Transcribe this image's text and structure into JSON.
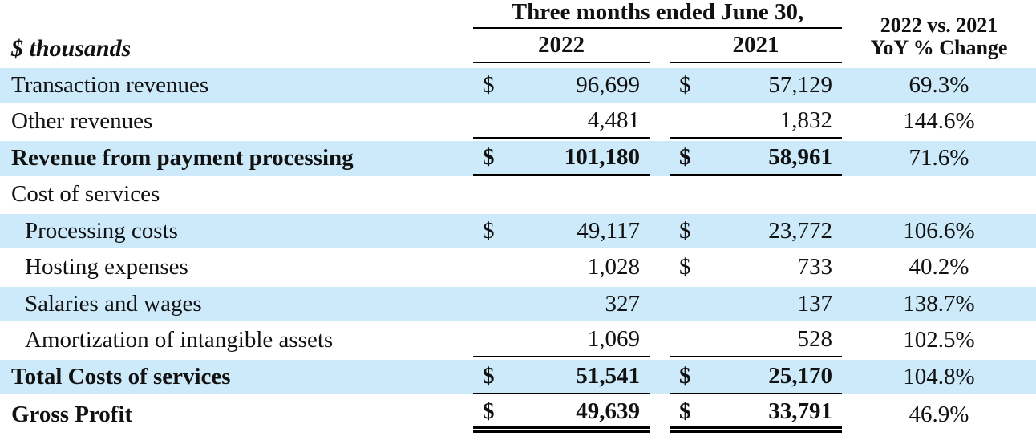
{
  "colors": {
    "row_highlight": "#cdeafb",
    "text": "#111111",
    "line": "#000000"
  },
  "table": {
    "unit_label": "$ thousands",
    "period_header": "Three months ended June 30,",
    "columns": {
      "y2022": "2022",
      "y2021": "2021",
      "yoy_line1": "2022 vs. 2021",
      "yoy_line2": "YoY % Change"
    },
    "rows": [
      {
        "label": "Transaction revenues",
        "indent": false,
        "bold": false,
        "highlight": true,
        "d2022": "$",
        "v2022": "96,699",
        "d2021": "$",
        "v2021": "57,129",
        "yoy": "69.3%",
        "underline": "none"
      },
      {
        "label": "Other revenues",
        "indent": false,
        "bold": false,
        "highlight": false,
        "d2022": "",
        "v2022": "4,481",
        "d2021": "",
        "v2021": "1,832",
        "yoy": "144.6%",
        "underline": "single"
      },
      {
        "label": "Revenue from payment processing",
        "indent": false,
        "bold": true,
        "highlight": true,
        "d2022": "$",
        "v2022": "101,180",
        "d2021": "$",
        "v2021": "58,961",
        "yoy": "71.6%",
        "underline": "single"
      },
      {
        "label": "Cost of services",
        "indent": false,
        "bold": false,
        "highlight": false,
        "d2022": "",
        "v2022": "",
        "d2021": "",
        "v2021": "",
        "yoy": "",
        "underline": "none"
      },
      {
        "label": "Processing costs",
        "indent": true,
        "bold": false,
        "highlight": true,
        "d2022": "$",
        "v2022": "49,117",
        "d2021": "$",
        "v2021": "23,772",
        "yoy": "106.6%",
        "underline": "none"
      },
      {
        "label": "Hosting expenses",
        "indent": true,
        "bold": false,
        "highlight": false,
        "d2022": "",
        "v2022": "1,028",
        "d2021": "$",
        "v2021": "733",
        "yoy": "40.2%",
        "underline": "none"
      },
      {
        "label": "Salaries and wages",
        "indent": true,
        "bold": false,
        "highlight": true,
        "d2022": "",
        "v2022": "327",
        "d2021": "",
        "v2021": "137",
        "yoy": "138.7%",
        "underline": "none"
      },
      {
        "label": "Amortization of intangible assets",
        "indent": true,
        "bold": false,
        "highlight": false,
        "d2022": "",
        "v2022": "1,069",
        "d2021": "",
        "v2021": "528",
        "yoy": "102.5%",
        "underline": "single"
      },
      {
        "label": "Total Costs of services",
        "indent": false,
        "bold": true,
        "highlight": true,
        "d2022": "$",
        "v2022": "51,541",
        "d2021": "$",
        "v2021": "25,170",
        "yoy": "104.8%",
        "underline": "single"
      },
      {
        "label": "Gross Profit",
        "indent": false,
        "bold": true,
        "highlight": false,
        "d2022": "$",
        "v2022": "49,639",
        "d2021": "$",
        "v2021": "33,791",
        "yoy": "46.9%",
        "underline": "double"
      }
    ]
  }
}
